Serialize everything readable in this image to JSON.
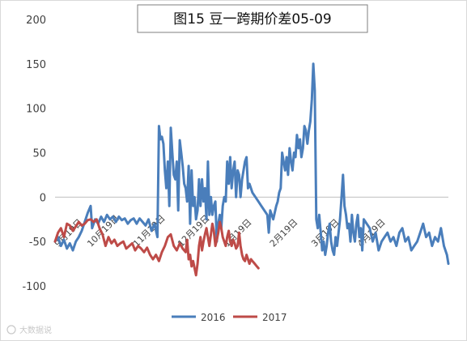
{
  "chart_data": {
    "type": "line",
    "title": "图15 豆一跨期价差05-09",
    "xlabel": "",
    "ylabel": "",
    "ylim": [
      -100,
      200
    ],
    "yticks": [
      -100,
      -50,
      0,
      50,
      100,
      150,
      200
    ],
    "x_index_range": [
      0,
      265
    ],
    "xtick_labels": [
      {
        "label": "9月19日",
        "i": 0
      },
      {
        "label": "10月19日",
        "i": 22
      },
      {
        "label": "11月19日",
        "i": 53
      },
      {
        "label": "12月19日",
        "i": 83
      },
      {
        "label": "1月19日",
        "i": 114
      },
      {
        "label": "2月19日",
        "i": 145
      },
      {
        "label": "3月19日",
        "i": 173
      },
      {
        "label": "4月19日",
        "i": 204
      }
    ],
    "grid": false,
    "legend_position": "bottom",
    "series": [
      {
        "name": "2016",
        "color": "#4A7EBB",
        "points": [
          [
            0,
            -50
          ],
          [
            2,
            -45
          ],
          [
            4,
            -55
          ],
          [
            6,
            -48
          ],
          [
            8,
            -58
          ],
          [
            10,
            -52
          ],
          [
            12,
            -60
          ],
          [
            14,
            -50
          ],
          [
            16,
            -45
          ],
          [
            18,
            -38
          ],
          [
            20,
            -28
          ],
          [
            22,
            -18
          ],
          [
            24,
            -10
          ],
          [
            25,
            -35
          ],
          [
            27,
            -25
          ],
          [
            29,
            -30
          ],
          [
            31,
            -22
          ],
          [
            33,
            -28
          ],
          [
            35,
            -20
          ],
          [
            37,
            -25
          ],
          [
            39,
            -22
          ],
          [
            41,
            -28
          ],
          [
            43,
            -22
          ],
          [
            45,
            -26
          ],
          [
            47,
            -24
          ],
          [
            49,
            -30
          ],
          [
            51,
            -26
          ],
          [
            53,
            -24
          ],
          [
            55,
            -30
          ],
          [
            57,
            -24
          ],
          [
            59,
            -28
          ],
          [
            61,
            -32
          ],
          [
            63,
            -25
          ],
          [
            65,
            -38
          ],
          [
            67,
            -30
          ],
          [
            69,
            -45
          ],
          [
            70,
            80
          ],
          [
            71,
            65
          ],
          [
            72,
            68
          ],
          [
            73,
            60
          ],
          [
            74,
            30
          ],
          [
            75,
            10
          ],
          [
            76,
            40
          ],
          [
            77,
            -10
          ],
          [
            78,
            78
          ],
          [
            79,
            50
          ],
          [
            80,
            25
          ],
          [
            81,
            20
          ],
          [
            82,
            40
          ],
          [
            83,
            -15
          ],
          [
            84,
            64
          ],
          [
            85,
            50
          ],
          [
            86,
            35
          ],
          [
            87,
            15
          ],
          [
            88,
            10
          ],
          [
            89,
            -5
          ],
          [
            90,
            35
          ],
          [
            91,
            -30
          ],
          [
            92,
            30
          ],
          [
            93,
            -10
          ],
          [
            94,
            0
          ],
          [
            95,
            -25
          ],
          [
            96,
            -15
          ],
          [
            97,
            20
          ],
          [
            98,
            -10
          ],
          [
            99,
            20
          ],
          [
            100,
            -5
          ],
          [
            101,
            10
          ],
          [
            102,
            -25
          ],
          [
            103,
            40
          ],
          [
            104,
            -20
          ],
          [
            105,
            0
          ],
          [
            106,
            -20
          ],
          [
            107,
            -10
          ],
          [
            108,
            -5
          ],
          [
            109,
            -50
          ],
          [
            110,
            -30
          ],
          [
            111,
            -20
          ],
          [
            112,
            -35
          ],
          [
            113,
            -10
          ],
          [
            114,
            0
          ],
          [
            115,
            -5
          ],
          [
            116,
            40
          ],
          [
            117,
            15
          ],
          [
            118,
            45
          ],
          [
            119,
            10
          ],
          [
            120,
            30
          ],
          [
            121,
            40
          ],
          [
            122,
            0
          ],
          [
            123,
            30
          ],
          [
            124,
            25
          ],
          [
            125,
            0
          ],
          [
            126,
            20
          ],
          [
            127,
            30
          ],
          [
            128,
            40
          ],
          [
            129,
            45
          ],
          [
            130,
            10
          ],
          [
            131,
            15
          ],
          [
            133,
            5
          ],
          [
            135,
            0
          ],
          [
            137,
            -5
          ],
          [
            139,
            -10
          ],
          [
            141,
            -15
          ],
          [
            143,
            -20
          ],
          [
            144,
            -40
          ],
          [
            145,
            -15
          ],
          [
            147,
            -25
          ],
          [
            149,
            -10
          ],
          [
            150,
            -5
          ],
          [
            151,
            5
          ],
          [
            152,
            10
          ],
          [
            153,
            50
          ],
          [
            154,
            40
          ],
          [
            155,
            30
          ],
          [
            156,
            45
          ],
          [
            157,
            25
          ],
          [
            158,
            55
          ],
          [
            159,
            40
          ],
          [
            160,
            30
          ],
          [
            161,
            50
          ],
          [
            162,
            45
          ],
          [
            163,
            70
          ],
          [
            164,
            55
          ],
          [
            165,
            65
          ],
          [
            166,
            45
          ],
          [
            167,
            55
          ],
          [
            168,
            80
          ],
          [
            169,
            75
          ],
          [
            170,
            60
          ],
          [
            171,
            75
          ],
          [
            172,
            85
          ],
          [
            173,
            110
          ],
          [
            174,
            150
          ],
          [
            175,
            120
          ],
          [
            176,
            -25
          ],
          [
            177,
            -35
          ],
          [
            178,
            -20
          ],
          [
            179,
            -40
          ],
          [
            180,
            -60
          ],
          [
            181,
            -50
          ],
          [
            182,
            -65
          ],
          [
            183,
            -55
          ],
          [
            184,
            -40
          ],
          [
            185,
            -30
          ],
          [
            186,
            -50
          ],
          [
            187,
            -60
          ],
          [
            188,
            -65
          ],
          [
            189,
            -45
          ],
          [
            190,
            -55
          ],
          [
            191,
            -40
          ],
          [
            192,
            -25
          ],
          [
            193,
            0
          ],
          [
            194,
            25
          ],
          [
            195,
            -10
          ],
          [
            196,
            -20
          ],
          [
            197,
            -35
          ],
          [
            198,
            -30
          ],
          [
            199,
            -50
          ],
          [
            200,
            -20
          ],
          [
            201,
            -40
          ],
          [
            202,
            -50
          ],
          [
            203,
            -30
          ],
          [
            204,
            -20
          ],
          [
            205,
            -45
          ],
          [
            206,
            -35
          ],
          [
            207,
            -60
          ],
          [
            208,
            -25
          ],
          [
            210,
            -30
          ],
          [
            212,
            -35
          ],
          [
            214,
            -50
          ],
          [
            216,
            -40
          ],
          [
            218,
            -60
          ],
          [
            220,
            -50
          ],
          [
            222,
            -45
          ],
          [
            224,
            -40
          ],
          [
            226,
            -50
          ],
          [
            228,
            -45
          ],
          [
            230,
            -55
          ],
          [
            232,
            -40
          ],
          [
            234,
            -35
          ],
          [
            236,
            -50
          ],
          [
            238,
            -45
          ],
          [
            240,
            -60
          ],
          [
            242,
            -55
          ],
          [
            244,
            -50
          ],
          [
            246,
            -40
          ],
          [
            248,
            -30
          ],
          [
            250,
            -45
          ],
          [
            252,
            -40
          ],
          [
            254,
            -55
          ],
          [
            256,
            -45
          ],
          [
            258,
            -50
          ],
          [
            260,
            -35
          ],
          [
            262,
            -55
          ],
          [
            264,
            -65
          ],
          [
            265,
            -75
          ]
        ]
      },
      {
        "name": "2017",
        "color": "#BE4B48",
        "points": [
          [
            0,
            -50
          ],
          [
            2,
            -40
          ],
          [
            4,
            -35
          ],
          [
            6,
            -45
          ],
          [
            8,
            -30
          ],
          [
            10,
            -32
          ],
          [
            12,
            -38
          ],
          [
            14,
            -33
          ],
          [
            16,
            -28
          ],
          [
            18,
            -32
          ],
          [
            20,
            -30
          ],
          [
            22,
            -26
          ],
          [
            24,
            -25
          ],
          [
            26,
            -28
          ],
          [
            28,
            -25
          ],
          [
            30,
            -35
          ],
          [
            32,
            -42
          ],
          [
            34,
            -55
          ],
          [
            36,
            -45
          ],
          [
            38,
            -52
          ],
          [
            40,
            -48
          ],
          [
            42,
            -55
          ],
          [
            44,
            -52
          ],
          [
            46,
            -50
          ],
          [
            48,
            -58
          ],
          [
            50,
            -55
          ],
          [
            52,
            -52
          ],
          [
            54,
            -60
          ],
          [
            56,
            -55
          ],
          [
            58,
            -58
          ],
          [
            60,
            -62
          ],
          [
            62,
            -57
          ],
          [
            64,
            -65
          ],
          [
            66,
            -70
          ],
          [
            68,
            -65
          ],
          [
            70,
            -72
          ],
          [
            72,
            -62
          ],
          [
            74,
            -55
          ],
          [
            76,
            -45
          ],
          [
            78,
            -42
          ],
          [
            80,
            -55
          ],
          [
            82,
            -60
          ],
          [
            84,
            -52
          ],
          [
            86,
            -58
          ],
          [
            88,
            -62
          ],
          [
            89,
            -48
          ],
          [
            90,
            -70
          ],
          [
            91,
            -65
          ],
          [
            92,
            -78
          ],
          [
            93,
            -72
          ],
          [
            94,
            -80
          ],
          [
            95,
            -88
          ],
          [
            96,
            -75
          ],
          [
            97,
            -55
          ],
          [
            98,
            -45
          ],
          [
            99,
            -60
          ],
          [
            100,
            -50
          ],
          [
            101,
            -42
          ],
          [
            102,
            -35
          ],
          [
            103,
            -45
          ],
          [
            104,
            -55
          ],
          [
            105,
            -42
          ],
          [
            106,
            -30
          ],
          [
            107,
            -38
          ],
          [
            108,
            -55
          ],
          [
            109,
            -48
          ],
          [
            110,
            -40
          ],
          [
            111,
            -28
          ],
          [
            112,
            -35
          ],
          [
            113,
            -45
          ],
          [
            114,
            -50
          ],
          [
            115,
            -55
          ],
          [
            116,
            -45
          ],
          [
            117,
            -38
          ],
          [
            118,
            -50
          ],
          [
            119,
            -55
          ],
          [
            120,
            -48
          ],
          [
            121,
            -52
          ],
          [
            122,
            -58
          ],
          [
            123,
            -55
          ],
          [
            124,
            -40
          ],
          [
            125,
            -55
          ],
          [
            126,
            -65
          ],
          [
            127,
            -70
          ],
          [
            128,
            -72
          ],
          [
            129,
            -65
          ],
          [
            130,
            -70
          ],
          [
            131,
            -75
          ],
          [
            132,
            -70
          ],
          [
            133,
            -72
          ],
          [
            134,
            -74
          ],
          [
            135,
            -76
          ],
          [
            136,
            -78
          ],
          [
            137,
            -80
          ]
        ]
      }
    ]
  },
  "watermark": "大数据说"
}
